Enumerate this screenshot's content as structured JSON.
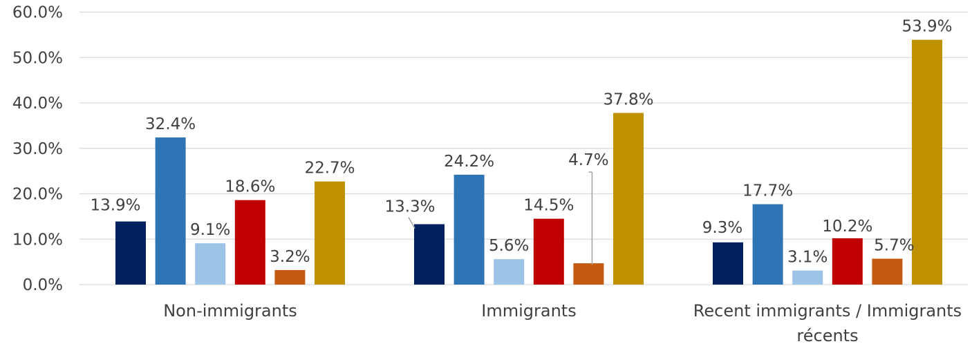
{
  "chart_data": {
    "type": "bar",
    "categories": [
      "Non-immigrants",
      "Immigrants",
      "Recent immigrants / Immigrants récents"
    ],
    "category_lines": [
      [
        "Non-immigrants"
      ],
      [
        "Immigrants"
      ],
      [
        "Recent immigrants / Immigrants",
        "récents"
      ]
    ],
    "series": [
      {
        "values": [
          13.9,
          13.3,
          9.3
        ],
        "color": "#002060"
      },
      {
        "values": [
          32.4,
          24.2,
          17.7
        ],
        "color": "#2e75b6"
      },
      {
        "values": [
          9.1,
          5.6,
          3.1
        ],
        "color": "#9dc3e6"
      },
      {
        "values": [
          18.6,
          14.5,
          10.2
        ],
        "color": "#c00000"
      },
      {
        "values": [
          3.2,
          4.7,
          5.7
        ],
        "color": "#c55a11"
      },
      {
        "values": [
          22.7,
          37.8,
          53.9
        ],
        "color": "#bf9000"
      }
    ],
    "data_labels": [
      [
        "13.9%",
        "13.3%",
        "9.3%"
      ],
      [
        "32.4%",
        "24.2%",
        "17.7%"
      ],
      [
        "9.1%",
        "5.6%",
        "3.1%"
      ],
      [
        "18.6%",
        "14.5%",
        "10.2%"
      ],
      [
        "3.2%",
        "4.7%",
        "5.7%"
      ],
      [
        "22.7%",
        "37.8%",
        "53.9%"
      ]
    ],
    "y_ticks": [
      "0.0%",
      "10.0%",
      "20.0%",
      "30.0%",
      "40.0%",
      "50.0%",
      "60.0%"
    ],
    "ylim": [
      0,
      60
    ],
    "grid": true,
    "legend": "none"
  }
}
